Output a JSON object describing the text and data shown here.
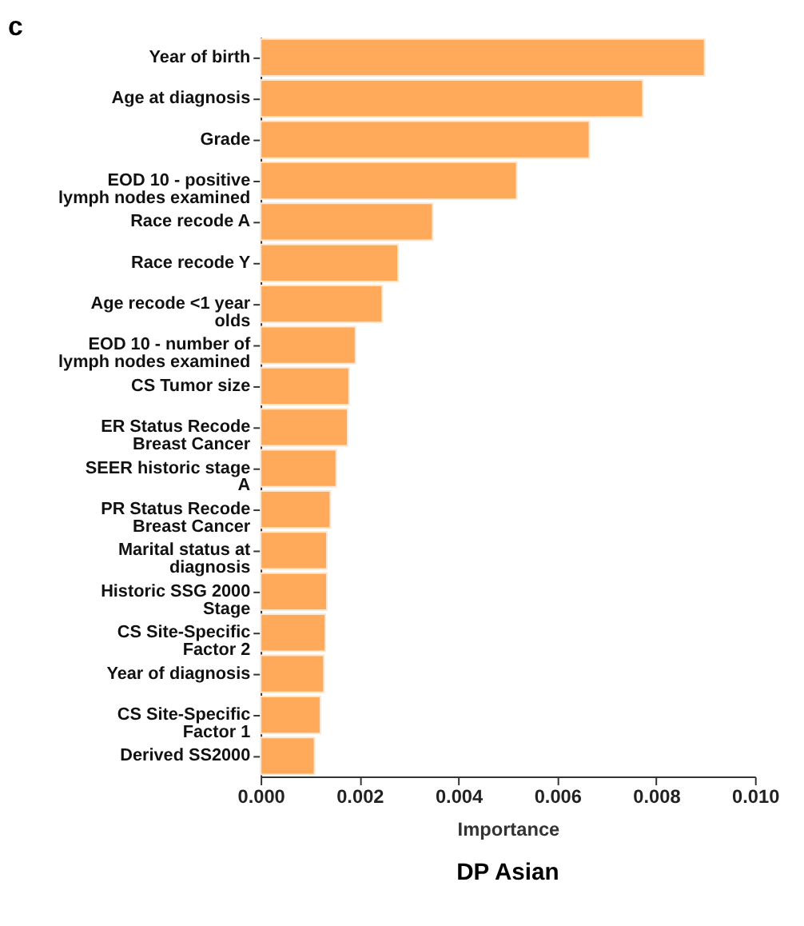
{
  "chart_data": {
    "type": "bar",
    "orientation": "horizontal",
    "title": "DP Asian",
    "xlabel": "Importance",
    "annotations": [
      "c"
    ],
    "categories": [
      "Year of birth",
      "Age at diagnosis",
      "Grade",
      "EOD 10 - positive lymph nodes examined",
      "Race recode A",
      "Race recode Y",
      "Age recode <1 year olds",
      "EOD 10 - number of lymph nodes examined",
      "CS Tumor size",
      "ER Status Recode Breast Cancer",
      "SEER historic stage A",
      "PR Status Recode Breast Cancer",
      "Marital status at diagnosis",
      "Historic SSG 2000 Stage",
      "CS Site-Specific Factor 2",
      "Year of diagnosis",
      "CS Site-Specific Factor 1",
      "Derived SS2000"
    ],
    "values": [
      0.00898,
      0.00773,
      0.00665,
      0.00518,
      0.00348,
      0.00278,
      0.00246,
      0.00192,
      0.00179,
      0.00176,
      0.00153,
      0.00141,
      0.00134,
      0.00134,
      0.00131,
      0.00128,
      0.00121,
      0.00109
    ],
    "color": "#ffaa5a",
    "xlim": [
      0,
      0.01
    ],
    "xticks": [
      {
        "value": 0,
        "label": "0.000"
      },
      {
        "value": 0.002,
        "label": "0.002"
      },
      {
        "value": 0.004,
        "label": "0.004"
      },
      {
        "value": 0.006,
        "label": "0.006"
      },
      {
        "value": 0.008,
        "label": "0.008"
      },
      {
        "value": 0.01,
        "label": "0.010"
      }
    ]
  }
}
